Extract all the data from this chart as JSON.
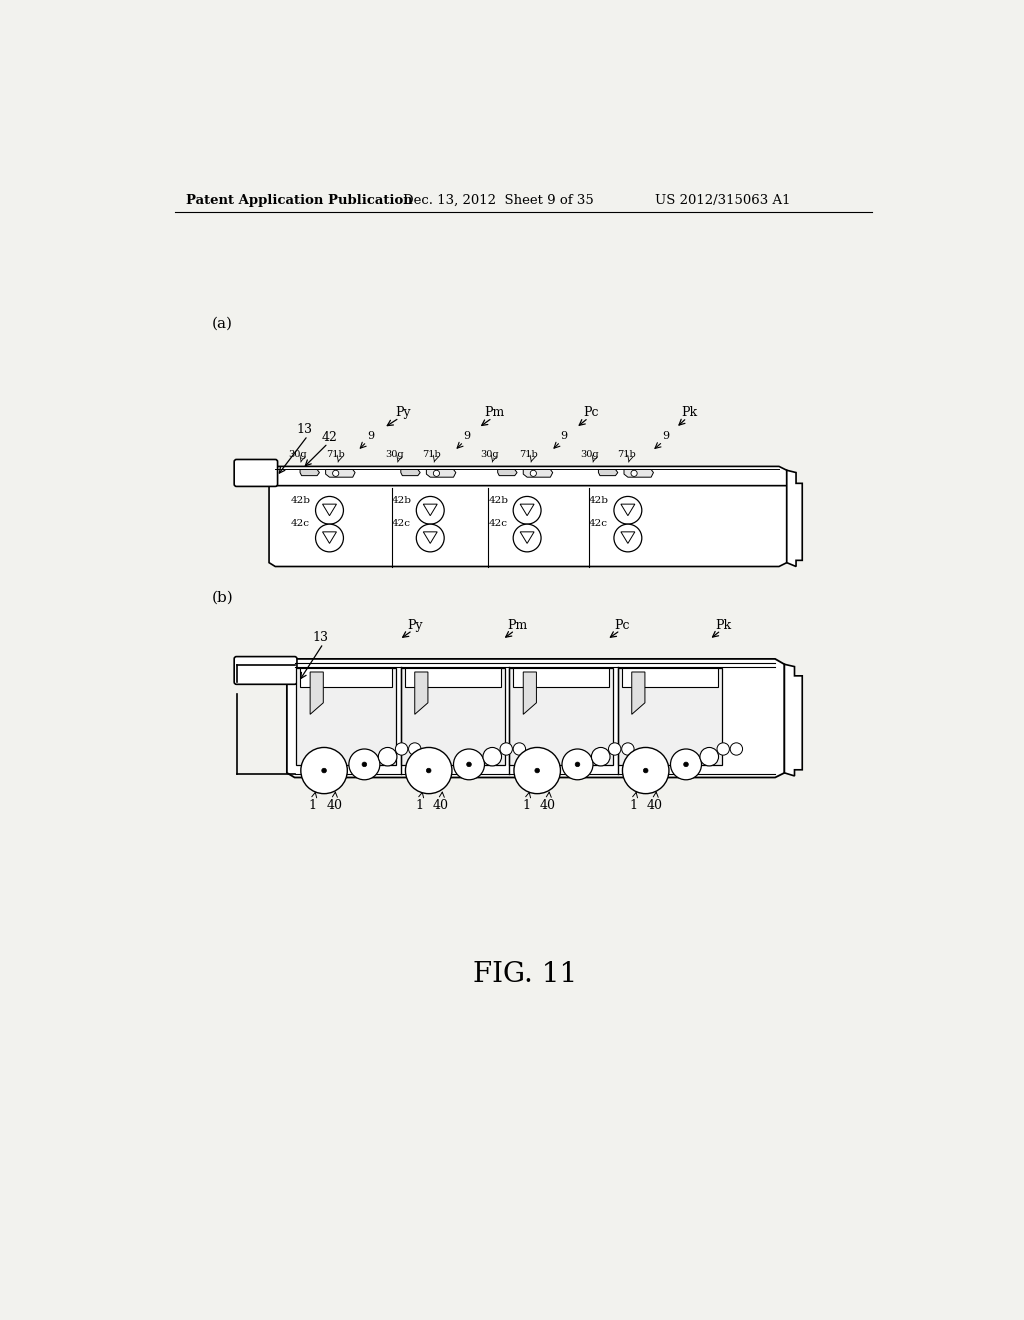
{
  "bg_color": "#f2f2ee",
  "header_left": "Patent Application Publication",
  "header_mid": "Dec. 13, 2012  Sheet 9 of 35",
  "header_right": "US 2012/315063 A1",
  "fig_label": "FIG. 11",
  "label_a": "(a)",
  "label_b": "(b)",
  "font_size_header": 9,
  "font_size_label": 9,
  "font_size_fig": 20
}
